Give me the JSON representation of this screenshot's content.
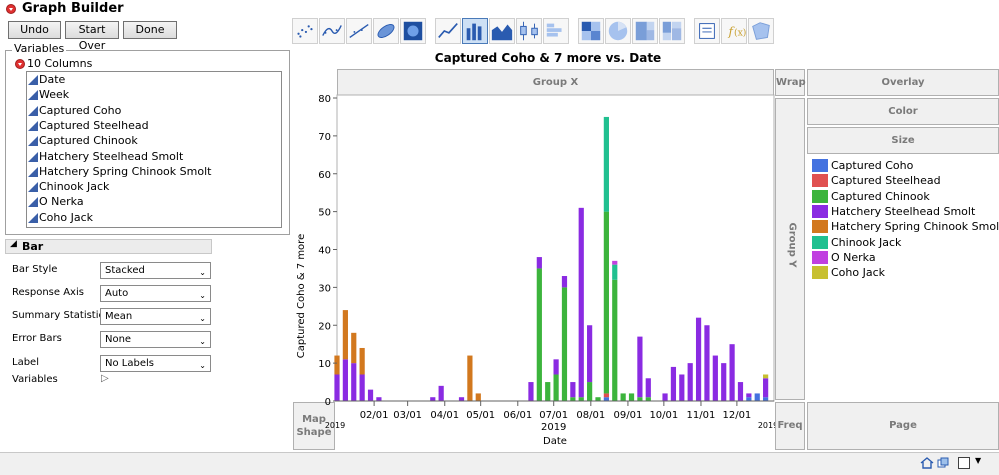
{
  "window": {
    "title": "Graph Builder"
  },
  "toolbar": {
    "undo": "Undo",
    "start_over": "Start Over",
    "done": "Done"
  },
  "variables": {
    "header": "Variables",
    "columns_label": "10 Columns",
    "items": [
      "Date",
      "Week",
      "Captured Coho",
      "Captured Steelhead",
      "Captured Chinook",
      "Hatchery Steelhead Smolt",
      "Hatchery Spring Chinook Smolt",
      "Chinook Jack",
      "O Nerka",
      "Coho Jack"
    ]
  },
  "bar_section": {
    "title": "Bar",
    "properties": [
      {
        "label": "Bar Style",
        "value": "Stacked"
      },
      {
        "label": "Response Axis",
        "value": "Auto"
      },
      {
        "label": "Summary Statistic",
        "value": "Mean"
      },
      {
        "label": "Error Bars",
        "value": "None"
      },
      {
        "label": "Label",
        "value": "No Labels"
      }
    ],
    "variables_label": "Variables"
  },
  "zones": {
    "group_x": "Group X",
    "wrap": "Wrap",
    "overlay": "Overlay",
    "color": "Color",
    "size": "Size",
    "group_y": "Group Y",
    "map_shape": "Map Shape",
    "freq": "Freq",
    "page": "Page"
  },
  "icons": [
    "points",
    "smoother",
    "line-of-fit",
    "ellipse",
    "contour",
    "line",
    "bar",
    "area",
    "box-plot",
    "histogram",
    "heatmap",
    "pie",
    "treemap",
    "mosaic",
    "caption-box",
    "formula",
    "map-shapes"
  ],
  "colors": {
    "Captured Coho": "#4472e0",
    "Captured Steelhead": "#e05050",
    "Captured Chinook": "#3cb43c",
    "Hatchery Steelhead Smolt": "#8a2be2",
    "Hatchery Spring Chinook Smolt": "#d2781e",
    "Chinook Jack": "#20c090",
    "O Nerka": "#c040e0",
    "Coho Jack": "#c8c030"
  },
  "chart_data": {
    "type": "bar",
    "title": "Captured Coho & 7 more vs. Date",
    "xlabel": "Date",
    "ylabel": "Captured Coho & 7 more",
    "ylim": [
      0,
      80
    ],
    "yticks": [
      0,
      10,
      20,
      30,
      40,
      50,
      60,
      70,
      80
    ],
    "xtick_labels": [
      "02/01",
      "03/01",
      "04/01",
      "05/01",
      "06/01",
      "07/01",
      "08/01",
      "09/01",
      "10/01",
      "11/01",
      "12/01"
    ],
    "x_year_label": "2019",
    "x_start_label": "2019",
    "x_end_label": "2019",
    "legend": [
      "Captured Coho",
      "Captured Steelhead",
      "Captured Chinook",
      "Hatchery Steelhead Smolt",
      "Hatchery Spring Chinook Smolt",
      "Chinook Jack",
      "O Nerka",
      "Coho Jack"
    ],
    "legend_position": "right",
    "bars": [
      {
        "date": "2019-01-01",
        "segments": {
          "Hatchery Steelhead Smolt": 7,
          "Hatchery Spring Chinook Smolt": 5
        }
      },
      {
        "date": "2019-01-08",
        "segments": {
          "Hatchery Steelhead Smolt": 11,
          "Hatchery Spring Chinook Smolt": 13
        }
      },
      {
        "date": "2019-01-15",
        "segments": {
          "Hatchery Steelhead Smolt": 10,
          "Hatchery Spring Chinook Smolt": 8
        }
      },
      {
        "date": "2019-01-22",
        "segments": {
          "Hatchery Steelhead Smolt": 7,
          "Hatchery Spring Chinook Smolt": 7
        }
      },
      {
        "date": "2019-01-29",
        "segments": {
          "Hatchery Steelhead Smolt": 3,
          "Hatchery Spring Chinook Smolt": 0
        }
      },
      {
        "date": "2019-02-05",
        "segments": {
          "Hatchery Steelhead Smolt": 1
        }
      },
      {
        "date": "2019-03-22",
        "segments": {
          "Hatchery Steelhead Smolt": 1
        }
      },
      {
        "date": "2019-03-29",
        "segments": {
          "Hatchery Steelhead Smolt": 4
        }
      },
      {
        "date": "2019-04-15",
        "segments": {
          "Hatchery Steelhead Smolt": 1
        }
      },
      {
        "date": "2019-04-22",
        "segments": {
          "Hatchery Spring Chinook Smolt": 12
        }
      },
      {
        "date": "2019-04-29",
        "segments": {
          "Hatchery Spring Chinook Smolt": 2
        }
      },
      {
        "date": "2019-06-12",
        "segments": {
          "Hatchery Steelhead Smolt": 5
        }
      },
      {
        "date": "2019-06-19",
        "segments": {
          "Captured Chinook": 35,
          "Hatchery Steelhead Smolt": 3
        }
      },
      {
        "date": "2019-06-26",
        "segments": {
          "Captured Chinook": 5,
          "Hatchery Steelhead Smolt": 0
        }
      },
      {
        "date": "2019-07-03",
        "segments": {
          "Captured Chinook": 7,
          "Hatchery Steelhead Smolt": 4
        }
      },
      {
        "date": "2019-07-10",
        "segments": {
          "Captured Chinook": 30,
          "Hatchery Steelhead Smolt": 3
        }
      },
      {
        "date": "2019-07-17",
        "segments": {
          "Captured Chinook": 1,
          "Hatchery Steelhead Smolt": 4
        }
      },
      {
        "date": "2019-07-24",
        "segments": {
          "Captured Chinook": 1,
          "Hatchery Steelhead Smolt": 50
        }
      },
      {
        "date": "2019-07-31",
        "segments": {
          "Captured Chinook": 5,
          "Hatchery Steelhead Smolt": 15
        }
      },
      {
        "date": "2019-08-07",
        "segments": {
          "Captured Chinook": 1
        }
      },
      {
        "date": "2019-08-14",
        "segments": {
          "Captured Coho": 1,
          "Captured Steelhead": 1,
          "Captured Chinook": 48,
          "Chinook Jack": 25
        }
      },
      {
        "date": "2019-08-21",
        "segments": {
          "Captured Chinook": 32,
          "Chinook Jack": 4,
          "O Nerka": 1
        }
      },
      {
        "date": "2019-08-28",
        "segments": {
          "Captured Chinook": 2
        }
      },
      {
        "date": "2019-09-04",
        "segments": {
          "Captured Chinook": 2
        }
      },
      {
        "date": "2019-09-11",
        "segments": {
          "Captured Chinook": 1,
          "Hatchery Steelhead Smolt": 16
        }
      },
      {
        "date": "2019-09-18",
        "segments": {
          "Captured Chinook": 1,
          "Hatchery Steelhead Smolt": 5
        }
      },
      {
        "date": "2019-10-02",
        "segments": {
          "Hatchery Steelhead Smolt": 2
        }
      },
      {
        "date": "2019-10-09",
        "segments": {
          "Hatchery Steelhead Smolt": 9
        }
      },
      {
        "date": "2019-10-16",
        "segments": {
          "Hatchery Steelhead Smolt": 7
        }
      },
      {
        "date": "2019-10-23",
        "segments": {
          "Hatchery Steelhead Smolt": 10
        }
      },
      {
        "date": "2019-10-30",
        "segments": {
          "Hatchery Steelhead Smolt": 22
        }
      },
      {
        "date": "2019-11-06",
        "segments": {
          "Hatchery Steelhead Smolt": 20
        }
      },
      {
        "date": "2019-11-13",
        "segments": {
          "Hatchery Steelhead Smolt": 12
        }
      },
      {
        "date": "2019-11-20",
        "segments": {
          "Hatchery Steelhead Smolt": 10
        }
      },
      {
        "date": "2019-11-27",
        "segments": {
          "Hatchery Steelhead Smolt": 15
        }
      },
      {
        "date": "2019-12-04",
        "segments": {
          "Hatchery Steelhead Smolt": 5
        }
      },
      {
        "date": "2019-12-11",
        "segments": {
          "Captured Coho": 1,
          "Hatchery Steelhead Smolt": 1
        }
      },
      {
        "date": "2019-12-18",
        "segments": {
          "Captured Coho": 2
        }
      },
      {
        "date": "2019-12-25",
        "segments": {
          "Captured Coho": 1,
          "Hatchery Steelhead Smolt": 5,
          "Coho Jack": 1
        }
      }
    ]
  }
}
